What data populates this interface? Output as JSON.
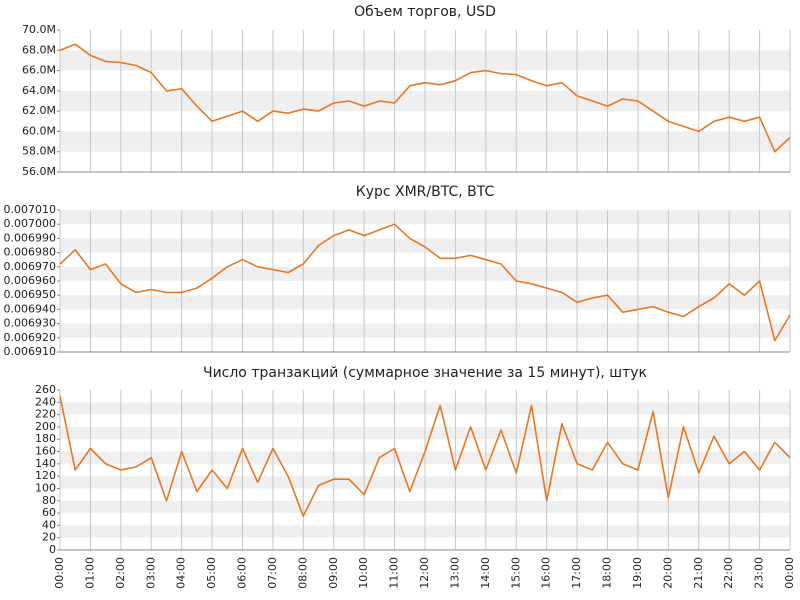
{
  "chart_data": [
    {
      "type": "line",
      "title": "Объем торгов, USD",
      "color": "#e87722",
      "x": [
        "00:00",
        "00:30",
        "01:00",
        "01:30",
        "02:00",
        "02:30",
        "03:00",
        "03:30",
        "04:00",
        "04:30",
        "05:00",
        "05:30",
        "06:00",
        "06:30",
        "07:00",
        "07:30",
        "08:00",
        "08:30",
        "09:00",
        "09:30",
        "10:00",
        "10:30",
        "11:00",
        "11:30",
        "12:00",
        "12:30",
        "13:00",
        "13:30",
        "14:00",
        "14:30",
        "15:00",
        "15:30",
        "16:00",
        "16:30",
        "17:00",
        "17:30",
        "18:00",
        "18:30",
        "19:00",
        "19:30",
        "20:00",
        "20:30",
        "21:00",
        "21:30",
        "22:00",
        "22:30",
        "23:00",
        "23:30",
        "00:00"
      ],
      "values": [
        68.0,
        68.6,
        67.5,
        66.9,
        66.8,
        66.5,
        65.8,
        64.0,
        64.2,
        62.5,
        61.0,
        61.5,
        62.0,
        61.0,
        62.0,
        61.8,
        62.2,
        62.0,
        62.8,
        63.0,
        62.5,
        63.0,
        62.8,
        64.5,
        64.8,
        64.6,
        65.0,
        65.8,
        66.0,
        65.7,
        65.6,
        65.0,
        64.5,
        64.8,
        63.5,
        63.0,
        62.5,
        63.2,
        63.0,
        62.0,
        61.0,
        60.5,
        60.0,
        61.0,
        61.4,
        61.0,
        61.4,
        58.0,
        59.4
      ],
      "ylim": [
        56,
        70
      ],
      "yticks": [
        {
          "value": 56,
          "label": "56.0M"
        },
        {
          "value": 58,
          "label": "58.0M"
        },
        {
          "value": 60,
          "label": "60.0M"
        },
        {
          "value": 62,
          "label": "62.0M"
        },
        {
          "value": 64,
          "label": "64.0M"
        },
        {
          "value": 66,
          "label": "66.0M"
        },
        {
          "value": 68,
          "label": "68.0M"
        },
        {
          "value": 70,
          "label": "70.0M"
        }
      ],
      "xticks": [
        "00:00",
        "01:00",
        "02:00",
        "03:00",
        "04:00",
        "05:00",
        "06:00",
        "07:00",
        "08:00",
        "09:00",
        "10:00",
        "11:00",
        "12:00",
        "13:00",
        "14:00",
        "15:00",
        "16:00",
        "17:00",
        "18:00",
        "19:00",
        "20:00",
        "21:00",
        "22:00",
        "23:00",
        "00:00"
      ],
      "grid": true
    },
    {
      "type": "line",
      "title": "Курс XMR/BTC, BTC",
      "color": "#e87722",
      "x": [
        "00:00",
        "00:30",
        "01:00",
        "01:30",
        "02:00",
        "02:30",
        "03:00",
        "03:30",
        "04:00",
        "04:30",
        "05:00",
        "05:30",
        "06:00",
        "06:30",
        "07:00",
        "07:30",
        "08:00",
        "08:30",
        "09:00",
        "09:30",
        "10:00",
        "10:30",
        "11:00",
        "11:30",
        "12:00",
        "12:30",
        "13:00",
        "13:30",
        "14:00",
        "14:30",
        "15:00",
        "15:30",
        "16:00",
        "16:30",
        "17:00",
        "17:30",
        "18:00",
        "18:30",
        "19:00",
        "19:30",
        "20:00",
        "20:30",
        "21:00",
        "21:30",
        "22:00",
        "22:30",
        "23:00",
        "23:30",
        "00:00"
      ],
      "values": [
        0.006972,
        0.006982,
        0.006968,
        0.006972,
        0.006958,
        0.006952,
        0.006954,
        0.006952,
        0.006952,
        0.006955,
        0.006962,
        0.00697,
        0.006975,
        0.00697,
        0.006968,
        0.006966,
        0.006972,
        0.006985,
        0.006992,
        0.006996,
        0.006992,
        0.006996,
        0.007,
        0.00699,
        0.006984,
        0.006976,
        0.006976,
        0.006978,
        0.006975,
        0.006972,
        0.00696,
        0.006958,
        0.006955,
        0.006952,
        0.006945,
        0.006948,
        0.00695,
        0.006938,
        0.00694,
        0.006942,
        0.006938,
        0.006935,
        0.006942,
        0.006948,
        0.006958,
        0.00695,
        0.00696,
        0.006918,
        0.006936
      ],
      "ylim": [
        0.00691,
        0.00701
      ],
      "yticks": [
        {
          "value": 0.00691,
          "label": "0.006910"
        },
        {
          "value": 0.00692,
          "label": "0.006920"
        },
        {
          "value": 0.00693,
          "label": "0.006930"
        },
        {
          "value": 0.00694,
          "label": "0.006940"
        },
        {
          "value": 0.00695,
          "label": "0.006950"
        },
        {
          "value": 0.00696,
          "label": "0.006960"
        },
        {
          "value": 0.00697,
          "label": "0.006970"
        },
        {
          "value": 0.00698,
          "label": "0.006980"
        },
        {
          "value": 0.00699,
          "label": "0.006990"
        },
        {
          "value": 0.007,
          "label": "0.007000"
        },
        {
          "value": 0.00701,
          "label": "0.007010"
        }
      ],
      "xticks": [
        "00:00",
        "01:00",
        "02:00",
        "03:00",
        "04:00",
        "05:00",
        "06:00",
        "07:00",
        "08:00",
        "09:00",
        "10:00",
        "11:00",
        "12:00",
        "13:00",
        "14:00",
        "15:00",
        "16:00",
        "17:00",
        "18:00",
        "19:00",
        "20:00",
        "21:00",
        "22:00",
        "23:00",
        "00:00"
      ],
      "grid": true
    },
    {
      "type": "line",
      "title": "Число транзакций (суммарное значение за 15 минут), штук",
      "color": "#e87722",
      "x": [
        "00:00",
        "00:30",
        "01:00",
        "01:30",
        "02:00",
        "02:30",
        "03:00",
        "03:30",
        "04:00",
        "04:30",
        "05:00",
        "05:30",
        "06:00",
        "06:30",
        "07:00",
        "07:30",
        "08:00",
        "08:30",
        "09:00",
        "09:30",
        "10:00",
        "10:30",
        "11:00",
        "11:30",
        "12:00",
        "12:30",
        "13:00",
        "13:30",
        "14:00",
        "14:30",
        "15:00",
        "15:30",
        "16:00",
        "16:30",
        "17:00",
        "17:30",
        "18:00",
        "18:30",
        "19:00",
        "19:30",
        "20:00",
        "20:30",
        "21:00",
        "21:30",
        "22:00",
        "22:30",
        "23:00",
        "23:30",
        "00:00"
      ],
      "values": [
        250,
        130,
        165,
        140,
        130,
        135,
        150,
        80,
        160,
        95,
        130,
        100,
        165,
        110,
        165,
        120,
        55,
        105,
        115,
        115,
        90,
        150,
        165,
        95,
        160,
        235,
        130,
        200,
        130,
        195,
        125,
        235,
        80,
        205,
        140,
        130,
        175,
        140,
        130,
        225,
        85,
        200,
        125,
        185,
        140,
        160,
        130,
        175,
        150
      ],
      "ylim": [
        0,
        260
      ],
      "yticks": [
        0,
        20,
        40,
        60,
        80,
        100,
        120,
        140,
        160,
        180,
        200,
        220,
        240,
        260
      ],
      "xticks": [
        "00:00",
        "01:00",
        "02:00",
        "03:00",
        "04:00",
        "05:00",
        "06:00",
        "07:00",
        "08:00",
        "09:00",
        "10:00",
        "11:00",
        "12:00",
        "13:00",
        "14:00",
        "15:00",
        "16:00",
        "17:00",
        "18:00",
        "19:00",
        "20:00",
        "21:00",
        "22:00",
        "23:00",
        "00:00"
      ],
      "grid": true
    }
  ]
}
